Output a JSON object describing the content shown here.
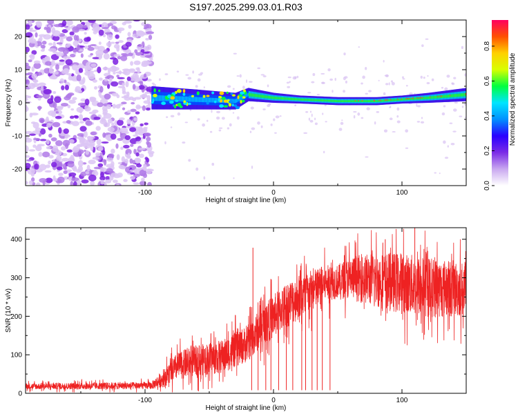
{
  "title": "S197.2025.299.03.01.R03",
  "chart_data": [
    {
      "type": "heatmap",
      "name": "spectrogram",
      "xlabel": "Height of straight line (km)",
      "ylabel": "Frequency (Hz)",
      "xlim": [
        -193,
        150
      ],
      "ylim": [
        -25,
        25
      ],
      "xticks": [
        -100,
        0,
        100
      ],
      "xtick_labels": [
        "-100",
        "0",
        "100"
      ],
      "yticks": [
        20,
        10,
        0,
        -10,
        -20
      ],
      "ytick_labels": [
        "20",
        "10",
        "0",
        "-10",
        "-20"
      ],
      "noise_region_x": [
        -193,
        -95
      ],
      "signal_band": {
        "x": [
          -95,
          -60,
          -30,
          -20,
          0,
          20,
          50,
          80,
          100,
          120,
          150
        ],
        "center_hz": [
          1.5,
          1.0,
          0.5,
          2.5,
          1.5,
          1.0,
          0.5,
          0.5,
          1.0,
          1.5,
          2.5
        ],
        "half_width_hz": [
          3.5,
          3.0,
          2.5,
          2.0,
          1.5,
          1.2,
          1.2,
          1.2,
          1.2,
          1.5,
          2.0
        ]
      },
      "colorbar": {
        "label": "Normalized spectral amplitude",
        "range": [
          0,
          0.95
        ],
        "ticks": [
          0.0,
          0.2,
          0.4,
          0.6,
          0.8
        ],
        "tick_labels": [
          "0.0",
          "0.2",
          "0.4",
          "0.6",
          "0.8"
        ],
        "colors": [
          "#ffffff",
          "#c9a8f0",
          "#7b2be6",
          "#2a00ff",
          "#0090ff",
          "#00e5ff",
          "#00ff40",
          "#d8ff00",
          "#ffd000",
          "#ff5000",
          "#ff0060"
        ]
      }
    },
    {
      "type": "line",
      "name": "snr",
      "xlabel": "Height of straight line (km)",
      "ylabel": "SNR (10 * v/v)",
      "xlim": [
        -193,
        150
      ],
      "ylim": [
        0,
        430
      ],
      "xticks": [
        -100,
        0,
        100
      ],
      "xtick_labels": [
        "-100",
        "0",
        "100"
      ],
      "yticks": [
        0,
        100,
        200,
        300,
        400
      ],
      "ytick_labels": [
        "0",
        "100",
        "200",
        "300",
        "400"
      ],
      "color": "#ee2222",
      "envelope": {
        "x": [
          -193,
          -95,
          -85,
          -75,
          -60,
          -40,
          -20,
          -10,
          0,
          10,
          20,
          30,
          40,
          50,
          60,
          80,
          100,
          120,
          150
        ],
        "mean": [
          18,
          20,
          40,
          70,
          85,
          95,
          130,
          170,
          200,
          230,
          250,
          265,
          285,
          290,
          300,
          295,
          285,
          275,
          270
        ],
        "spread": [
          10,
          12,
          30,
          45,
          50,
          55,
          60,
          65,
          70,
          75,
          75,
          70,
          60,
          55,
          70,
          90,
          100,
          100,
          90
        ]
      },
      "spikes": [
        {
          "x": -16,
          "y": 378
        },
        {
          "x": 110,
          "y": 430
        },
        {
          "x": 87,
          "y": 400
        }
      ],
      "dropouts_x": [
        -17,
        -12,
        -6,
        -2,
        4,
        10,
        15,
        22,
        25,
        30,
        34,
        38,
        44
      ]
    }
  ]
}
